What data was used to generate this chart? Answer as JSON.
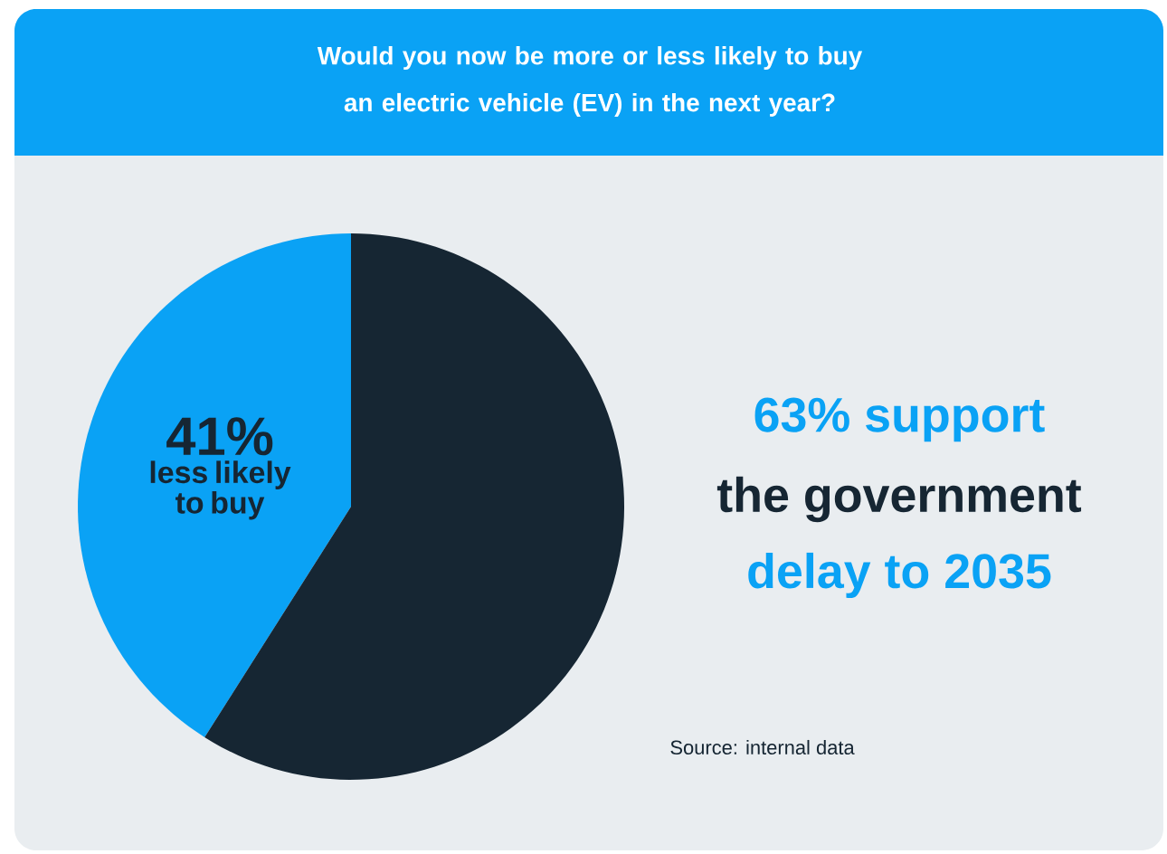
{
  "chart_data": {
    "type": "pie",
    "title": "Would you now be more or less likely to buy an electric vehicle (EV) in the next year?",
    "categories": [
      "less likely to buy",
      null
    ],
    "values": [
      41,
      59
    ],
    "colors": [
      "#0aa2f5",
      "#162633"
    ],
    "value_labels": [
      "41%",
      null
    ],
    "annotations": [
      "63% support",
      "the government",
      "delay to 2035",
      "Source: internal data"
    ]
  }
}
